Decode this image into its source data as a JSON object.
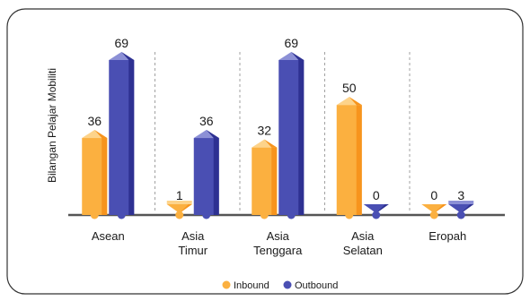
{
  "chart_data": {
    "type": "bar",
    "ylabel": "Bilangan Pelajar Mobiliti",
    "categories": [
      [
        "Asean"
      ],
      [
        "Asia",
        "Timur"
      ],
      [
        "Asia",
        "Tenggara"
      ],
      [
        "Asia",
        "Selatan"
      ],
      [
        "Eropah"
      ]
    ],
    "series": [
      {
        "name": "Inbound",
        "values": [
          36,
          1,
          32,
          50,
          0
        ]
      },
      {
        "name": "Outbound",
        "values": [
          69,
          36,
          69,
          0,
          3
        ]
      }
    ],
    "ylim": [
      0,
      69
    ],
    "grid": false,
    "legend_position": "bottom-center"
  },
  "colors": {
    "inbound_front": "#FBB040",
    "inbound_side": "#F7941D",
    "inbound_top": "#FDD38A",
    "outbound_front": "#4A4FB3",
    "outbound_side": "#2E3192",
    "outbound_top": "#8C90D6",
    "axis": "#555555",
    "divider": "#8a8a8a",
    "border": "#333333"
  }
}
